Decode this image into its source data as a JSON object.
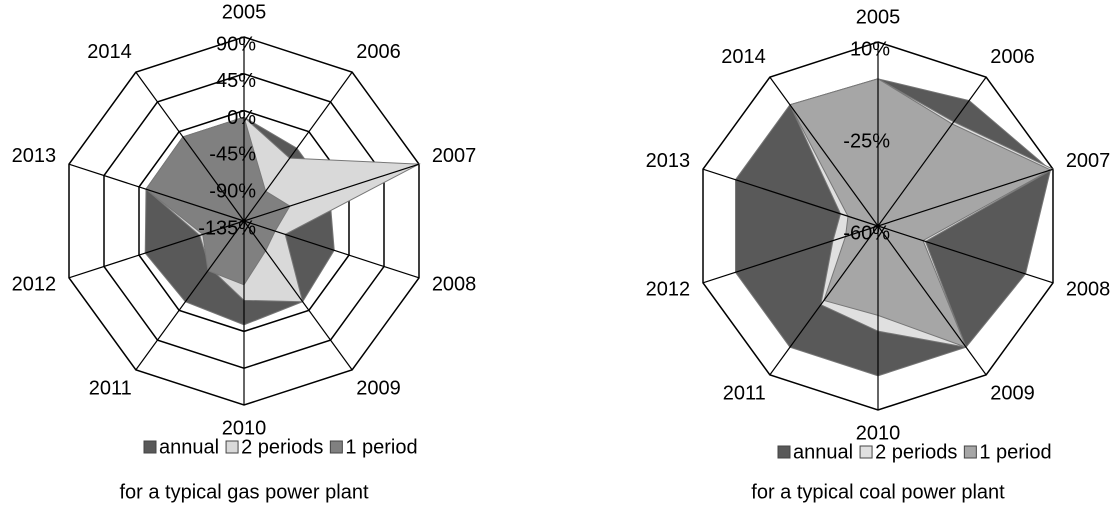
{
  "chart_data": [
    {
      "type": "radar",
      "title": "for a typical gas power plant",
      "categories": [
        "2005",
        "2006",
        "2007",
        "2008",
        "2009",
        "2010",
        "2011",
        "2012",
        "2013",
        "2014"
      ],
      "ylim": [
        -135,
        90
      ],
      "yticks": [
        {
          "value": -135,
          "label": "-135%"
        },
        {
          "value": -90,
          "label": "-90%"
        },
        {
          "value": -45,
          "label": "-45%"
        },
        {
          "value": 0,
          "label": "0%"
        },
        {
          "value": 45,
          "label": "45%"
        },
        {
          "value": 90,
          "label": "90%"
        }
      ],
      "series": [
        {
          "name": "annual",
          "color": "#595959",
          "values": [
            -8,
            -25,
            -25,
            -19,
            -13,
            -8,
            -13,
            -8,
            -9,
            -8
          ]
        },
        {
          "name": "2 periods",
          "color": "#d9d9d9",
          "values": [
            -8,
            -40,
            90,
            -82,
            -13,
            -38,
            -64,
            -78,
            -9,
            -8
          ]
        },
        {
          "name": "1 period",
          "color": "#808080",
          "values": [
            -8,
            -90,
            -76,
            -95,
            -90,
            -57,
            -60,
            -82,
            -9,
            -8
          ]
        }
      ]
    },
    {
      "type": "radar",
      "title": "for a typical coal power plant",
      "categories": [
        "2005",
        "2006",
        "2007",
        "2008",
        "2009",
        "2010",
        "2011",
        "2012",
        "2013",
        "2014"
      ],
      "ylim": [
        -60,
        10
      ],
      "yticks": [
        {
          "value": -60,
          "label": "-60%"
        },
        {
          "value": -25,
          "label": "-25%"
        },
        {
          "value": 10,
          "label": "10%"
        }
      ],
      "series": [
        {
          "name": "annual",
          "color": "#595959",
          "values": [
            -4,
            -1,
            9,
            -1,
            -3,
            -3,
            -3,
            -3,
            -3,
            -3
          ]
        },
        {
          "name": "2 periods",
          "color": "#e0e0e0",
          "values": [
            -4,
            -11,
            10,
            -41,
            -3,
            -20,
            -23,
            -42,
            -45,
            -3
          ]
        },
        {
          "name": "1 period",
          "color": "#a6a6a6",
          "values": [
            -4,
            -12,
            9,
            -42,
            -3,
            -26,
            -25,
            -47,
            -48,
            -3
          ]
        }
      ]
    }
  ]
}
